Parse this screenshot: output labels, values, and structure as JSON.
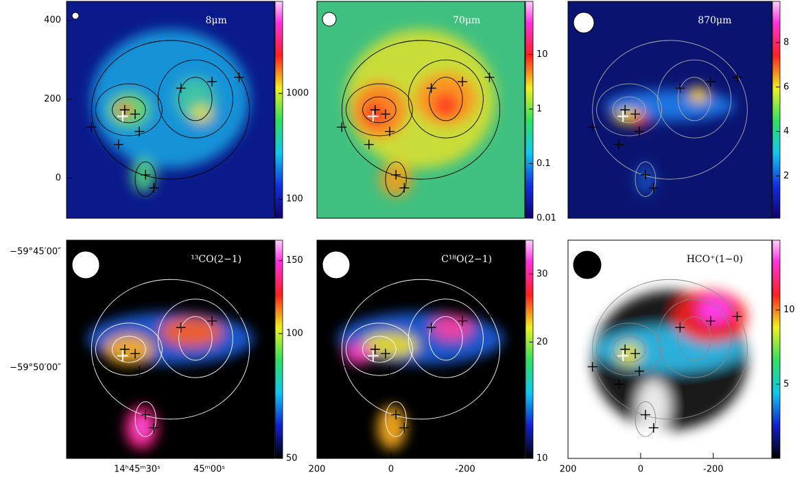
{
  "chart_data": [
    {
      "type": "image",
      "title": "8μm",
      "ylim": [
        -102,
        448
      ],
      "yticks": [
        0,
        200,
        400
      ],
      "colorbar": {
        "lim": [
          66,
          7430
        ],
        "log": true,
        "ticks": [
          100,
          1000
        ]
      }
    },
    {
      "type": "image",
      "title": "70μm",
      "colorbar": {
        "lim": [
          0.01,
          94
        ],
        "log": true,
        "ticks": [
          0.01,
          0.1,
          1,
          10
        ]
      }
    },
    {
      "type": "image",
      "title": "870μm",
      "colorbar": {
        "lim": [
          0.1,
          9.85
        ],
        "log": false,
        "ticks": [
          2,
          4,
          6,
          8
        ]
      }
    },
    {
      "type": "image",
      "title": "¹³CO(2−1)",
      "xlim": [
        59.4,
        -27.1
      ],
      "xticks": [
        {
          "value": 30,
          "label": "14ʰ45ᵐ30ˢ"
        },
        {
          "value": 0,
          "label": "45ᵐ00ˢ"
        }
      ],
      "ylim": [
        -3593.9,
        -3584.5
      ],
      "yticks": [
        {
          "value": -3585,
          "label": "−59°45′00″"
        },
        {
          "value": -3590,
          "label": "−59°50′00″"
        }
      ],
      "colorbar": {
        "lim": [
          50,
          168
        ],
        "log": true,
        "ticks": [
          50,
          100,
          150
        ]
      }
    },
    {
      "type": "image",
      "title": "C¹⁸O(2−1)",
      "xlim": [
        200,
        -361
      ],
      "xticks": [
        200,
        0,
        -200
      ],
      "colorbar": {
        "lim": [
          10,
          36.7
        ],
        "log": true,
        "ticks": [
          10,
          20,
          30
        ]
      }
    },
    {
      "type": "image",
      "title": "HCO⁺(1−0)",
      "xlim": [
        200,
        -361
      ],
      "xticks": [
        200,
        0,
        -200
      ],
      "colorbar": {
        "lim": [
          0,
          14.7
        ],
        "log": false,
        "ticks": [
          5,
          10
        ]
      }
    }
  ]
}
